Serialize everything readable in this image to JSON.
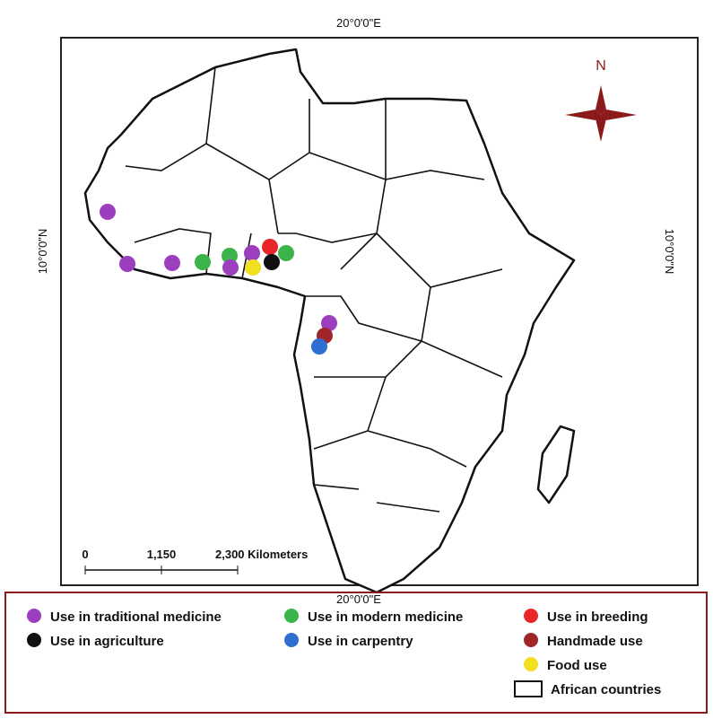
{
  "map": {
    "top_label": "20°0'0\"E",
    "bottom_label": "20°0'0\"E",
    "left_label": "10°0'0\"N",
    "right_label": "10°0'0\"N",
    "north": "N",
    "scale": [
      "0",
      "1,150",
      "2,300 Kilometers"
    ]
  },
  "legend": {
    "items": [
      {
        "label": "Use in traditional medicine",
        "color": "#9b3fbf"
      },
      {
        "label": "Use in modern medicine",
        "color": "#3bb54a"
      },
      {
        "label": "Use in breeding",
        "color": "#e8262a"
      },
      {
        "label": "Use in agriculture",
        "color": "#111111"
      },
      {
        "label": "Use in carpentry",
        "color": "#2f6fd0"
      },
      {
        "label": "Handmade use",
        "color": "#a0262a"
      },
      {
        "label": "Food use",
        "color": "#f0e020"
      },
      {
        "label": "African countries",
        "color": "#ffffff"
      }
    ]
  }
}
